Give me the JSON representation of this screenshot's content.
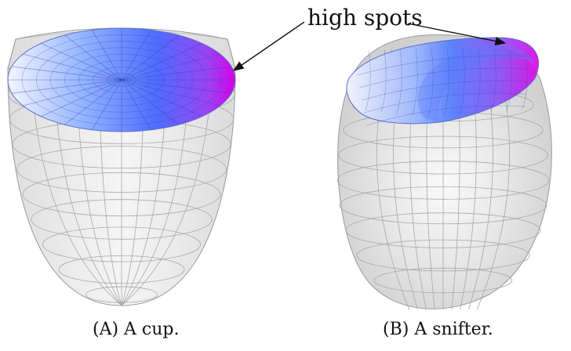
{
  "annotation": {
    "label": "high spots"
  },
  "captions": {
    "a": "(A) A cup.",
    "b": "(B) A snifter."
  },
  "colors": {
    "glass": "#c8c8c8",
    "grid": "#9a9a9a",
    "surface_low": "#e8f0ff",
    "surface_mid": "#4f7fff",
    "surface_high": "#d400e8"
  },
  "panels": [
    {
      "id": "a",
      "shape": "cup"
    },
    {
      "id": "b",
      "shape": "snifter"
    }
  ]
}
